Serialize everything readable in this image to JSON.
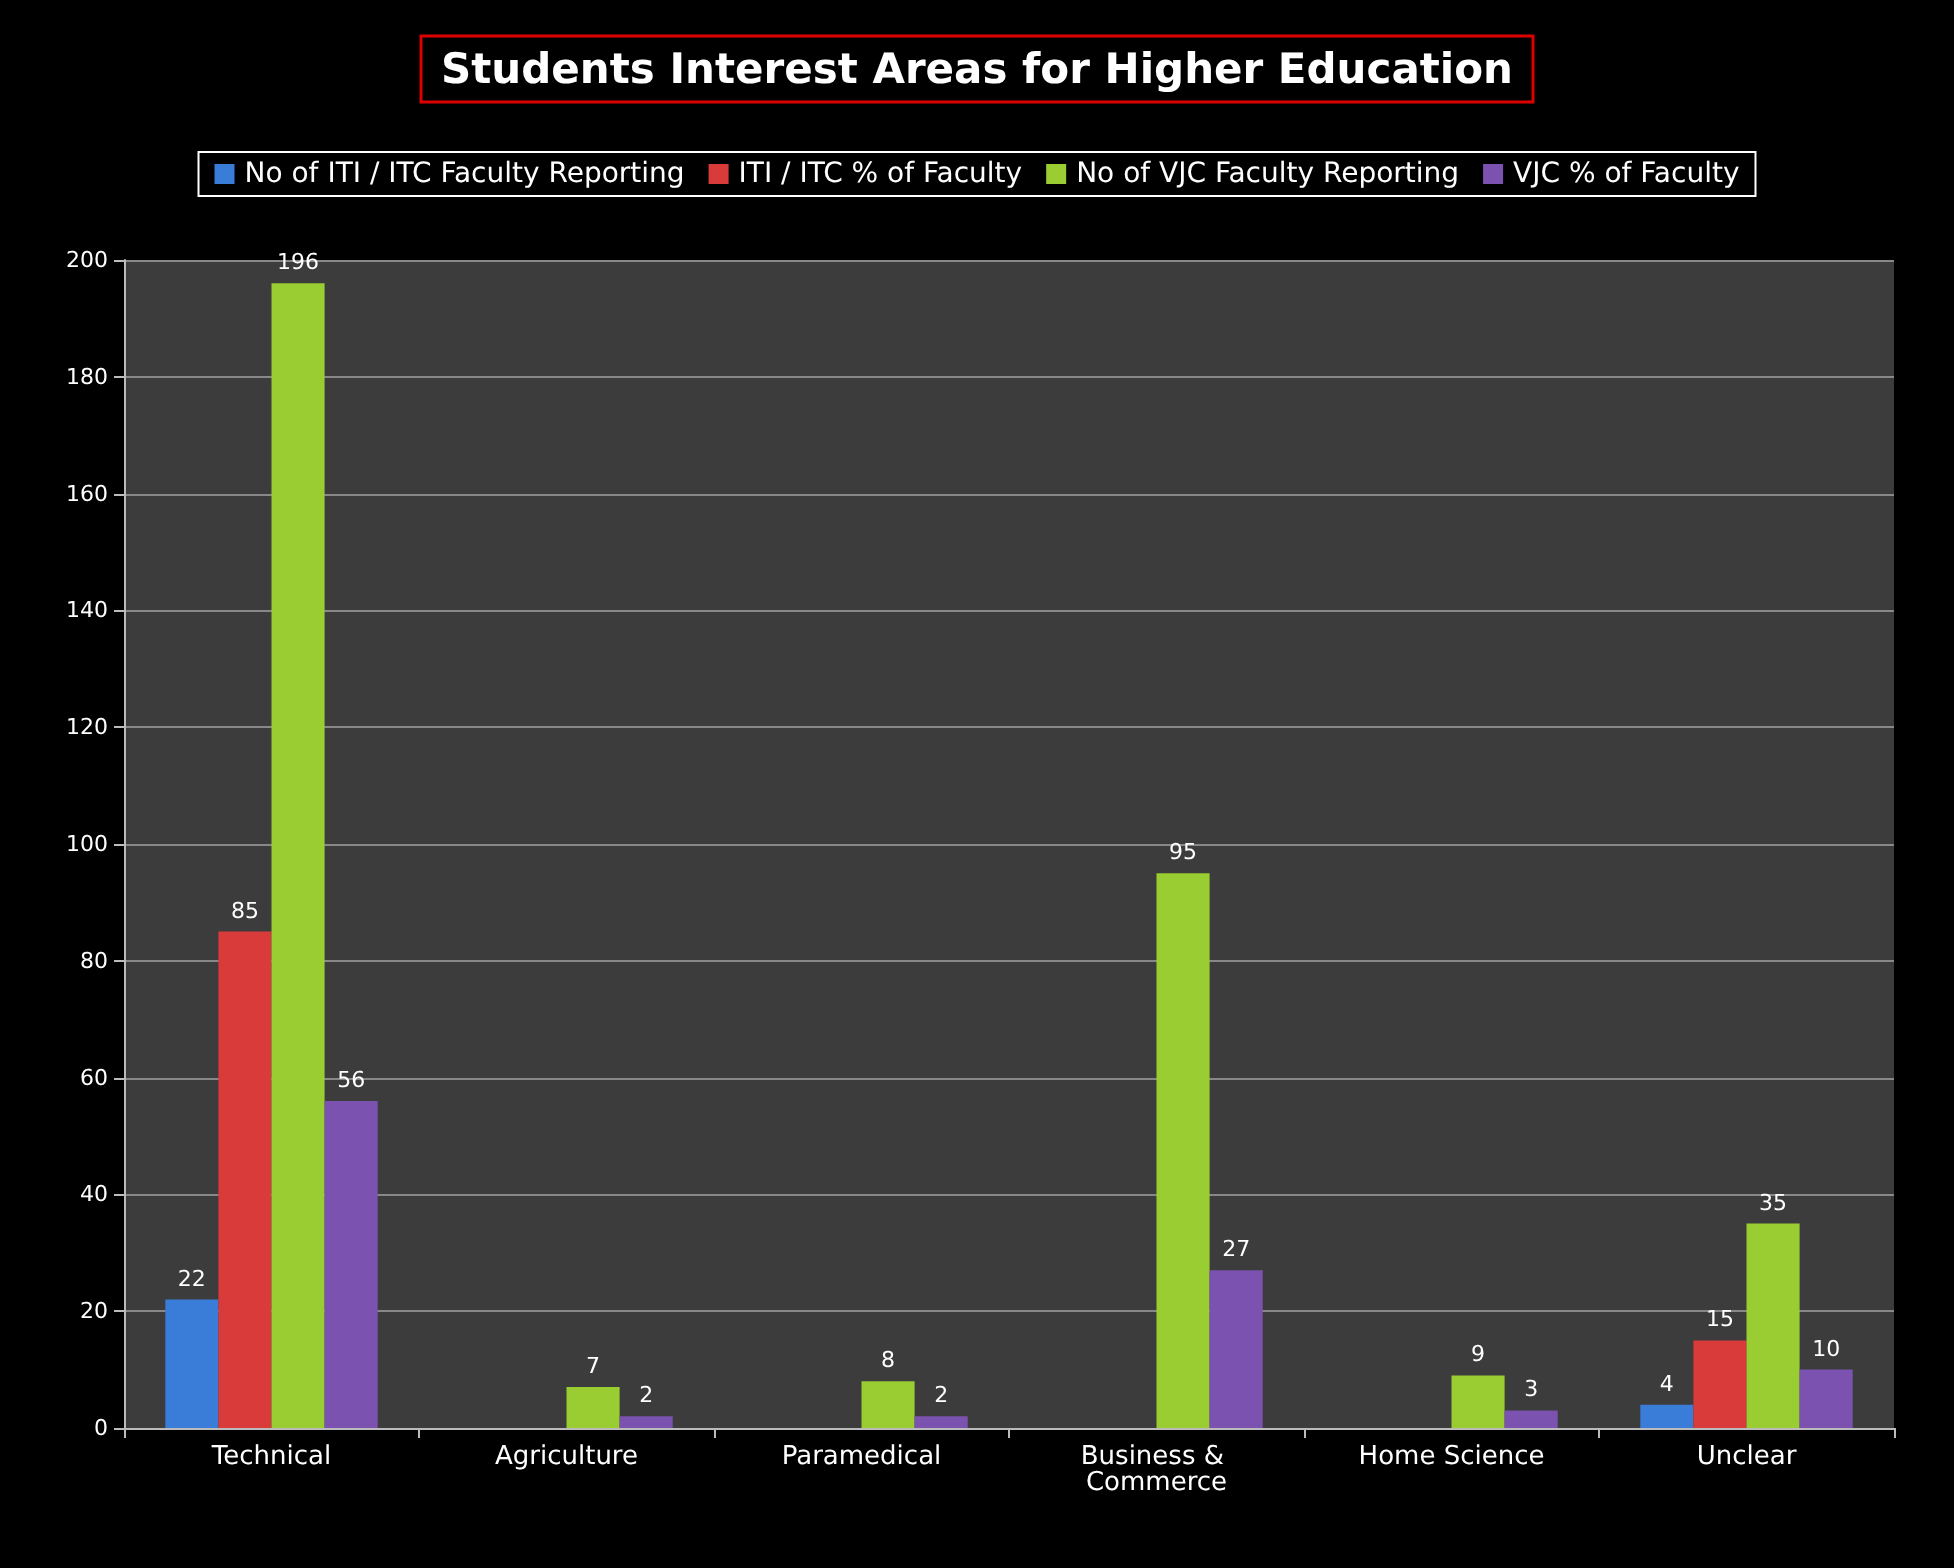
{
  "chart_data": {
    "type": "bar",
    "title": "Students Interest Areas for Higher Education",
    "categories": [
      "Technical",
      "Agriculture",
      "Paramedical",
      "Business & Commerce",
      "Home Science",
      "Unclear"
    ],
    "series": [
      {
        "name": "No of ITI / ITC Faculty Reporting",
        "color": "#3a7dd8",
        "values": [
          22,
          null,
          null,
          null,
          null,
          4
        ]
      },
      {
        "name": "ITI / ITC % of Faculty",
        "color": "#d93a3a",
        "values": [
          85,
          null,
          null,
          null,
          null,
          15
        ]
      },
      {
        "name": "No of VJC Faculty Reporting",
        "color": "#9acd32",
        "values": [
          196,
          7,
          8,
          95,
          9,
          35
        ]
      },
      {
        "name": "VJC % of Faculty",
        "color": "#7b52b0",
        "values": [
          56,
          2,
          2,
          27,
          3,
          10
        ]
      }
    ],
    "ylim": [
      0,
      200
    ],
    "yticks": [
      0,
      20,
      40,
      60,
      80,
      100,
      120,
      140,
      160,
      180,
      200
    ],
    "grid": "y",
    "legend": "top",
    "data_labels": true
  }
}
